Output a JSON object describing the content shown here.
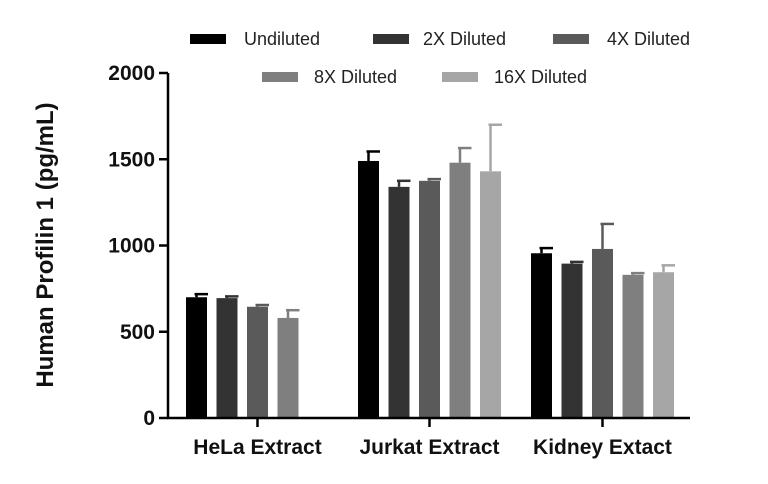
{
  "chart_data": {
    "type": "bar",
    "title": "",
    "xlabel": "",
    "ylabel": "Human Profilin 1 (pg/mL)",
    "ylim": [
      0,
      2000
    ],
    "yticks": [
      "0",
      "500",
      "1000",
      "1500",
      "2000"
    ],
    "categories": [
      "HeLa Extract",
      "Jurkat Extract",
      "Kidney Extact"
    ],
    "legend_position": "top",
    "series": [
      {
        "name": "Undiluted",
        "color": "#000000",
        "values": [
          700,
          1490,
          955
        ],
        "errors": [
          18,
          55,
          30
        ]
      },
      {
        "name": "2X Diluted",
        "color": "#333333",
        "values": [
          695,
          1340,
          895
        ],
        "errors": [
          10,
          35,
          10
        ]
      },
      {
        "name": "4X Diluted",
        "color": "#5a5a5a",
        "values": [
          645,
          1375,
          980
        ],
        "errors": [
          10,
          10,
          145
        ]
      },
      {
        "name": "8X Diluted",
        "color": "#7f7f7f",
        "values": [
          580,
          1480,
          830
        ],
        "errors": [
          45,
          85,
          10
        ]
      },
      {
        "name": "16X Diluted",
        "color": "#a6a6a6",
        "values": [
          null,
          1430,
          845
        ],
        "errors": [
          null,
          270,
          40
        ]
      }
    ]
  }
}
